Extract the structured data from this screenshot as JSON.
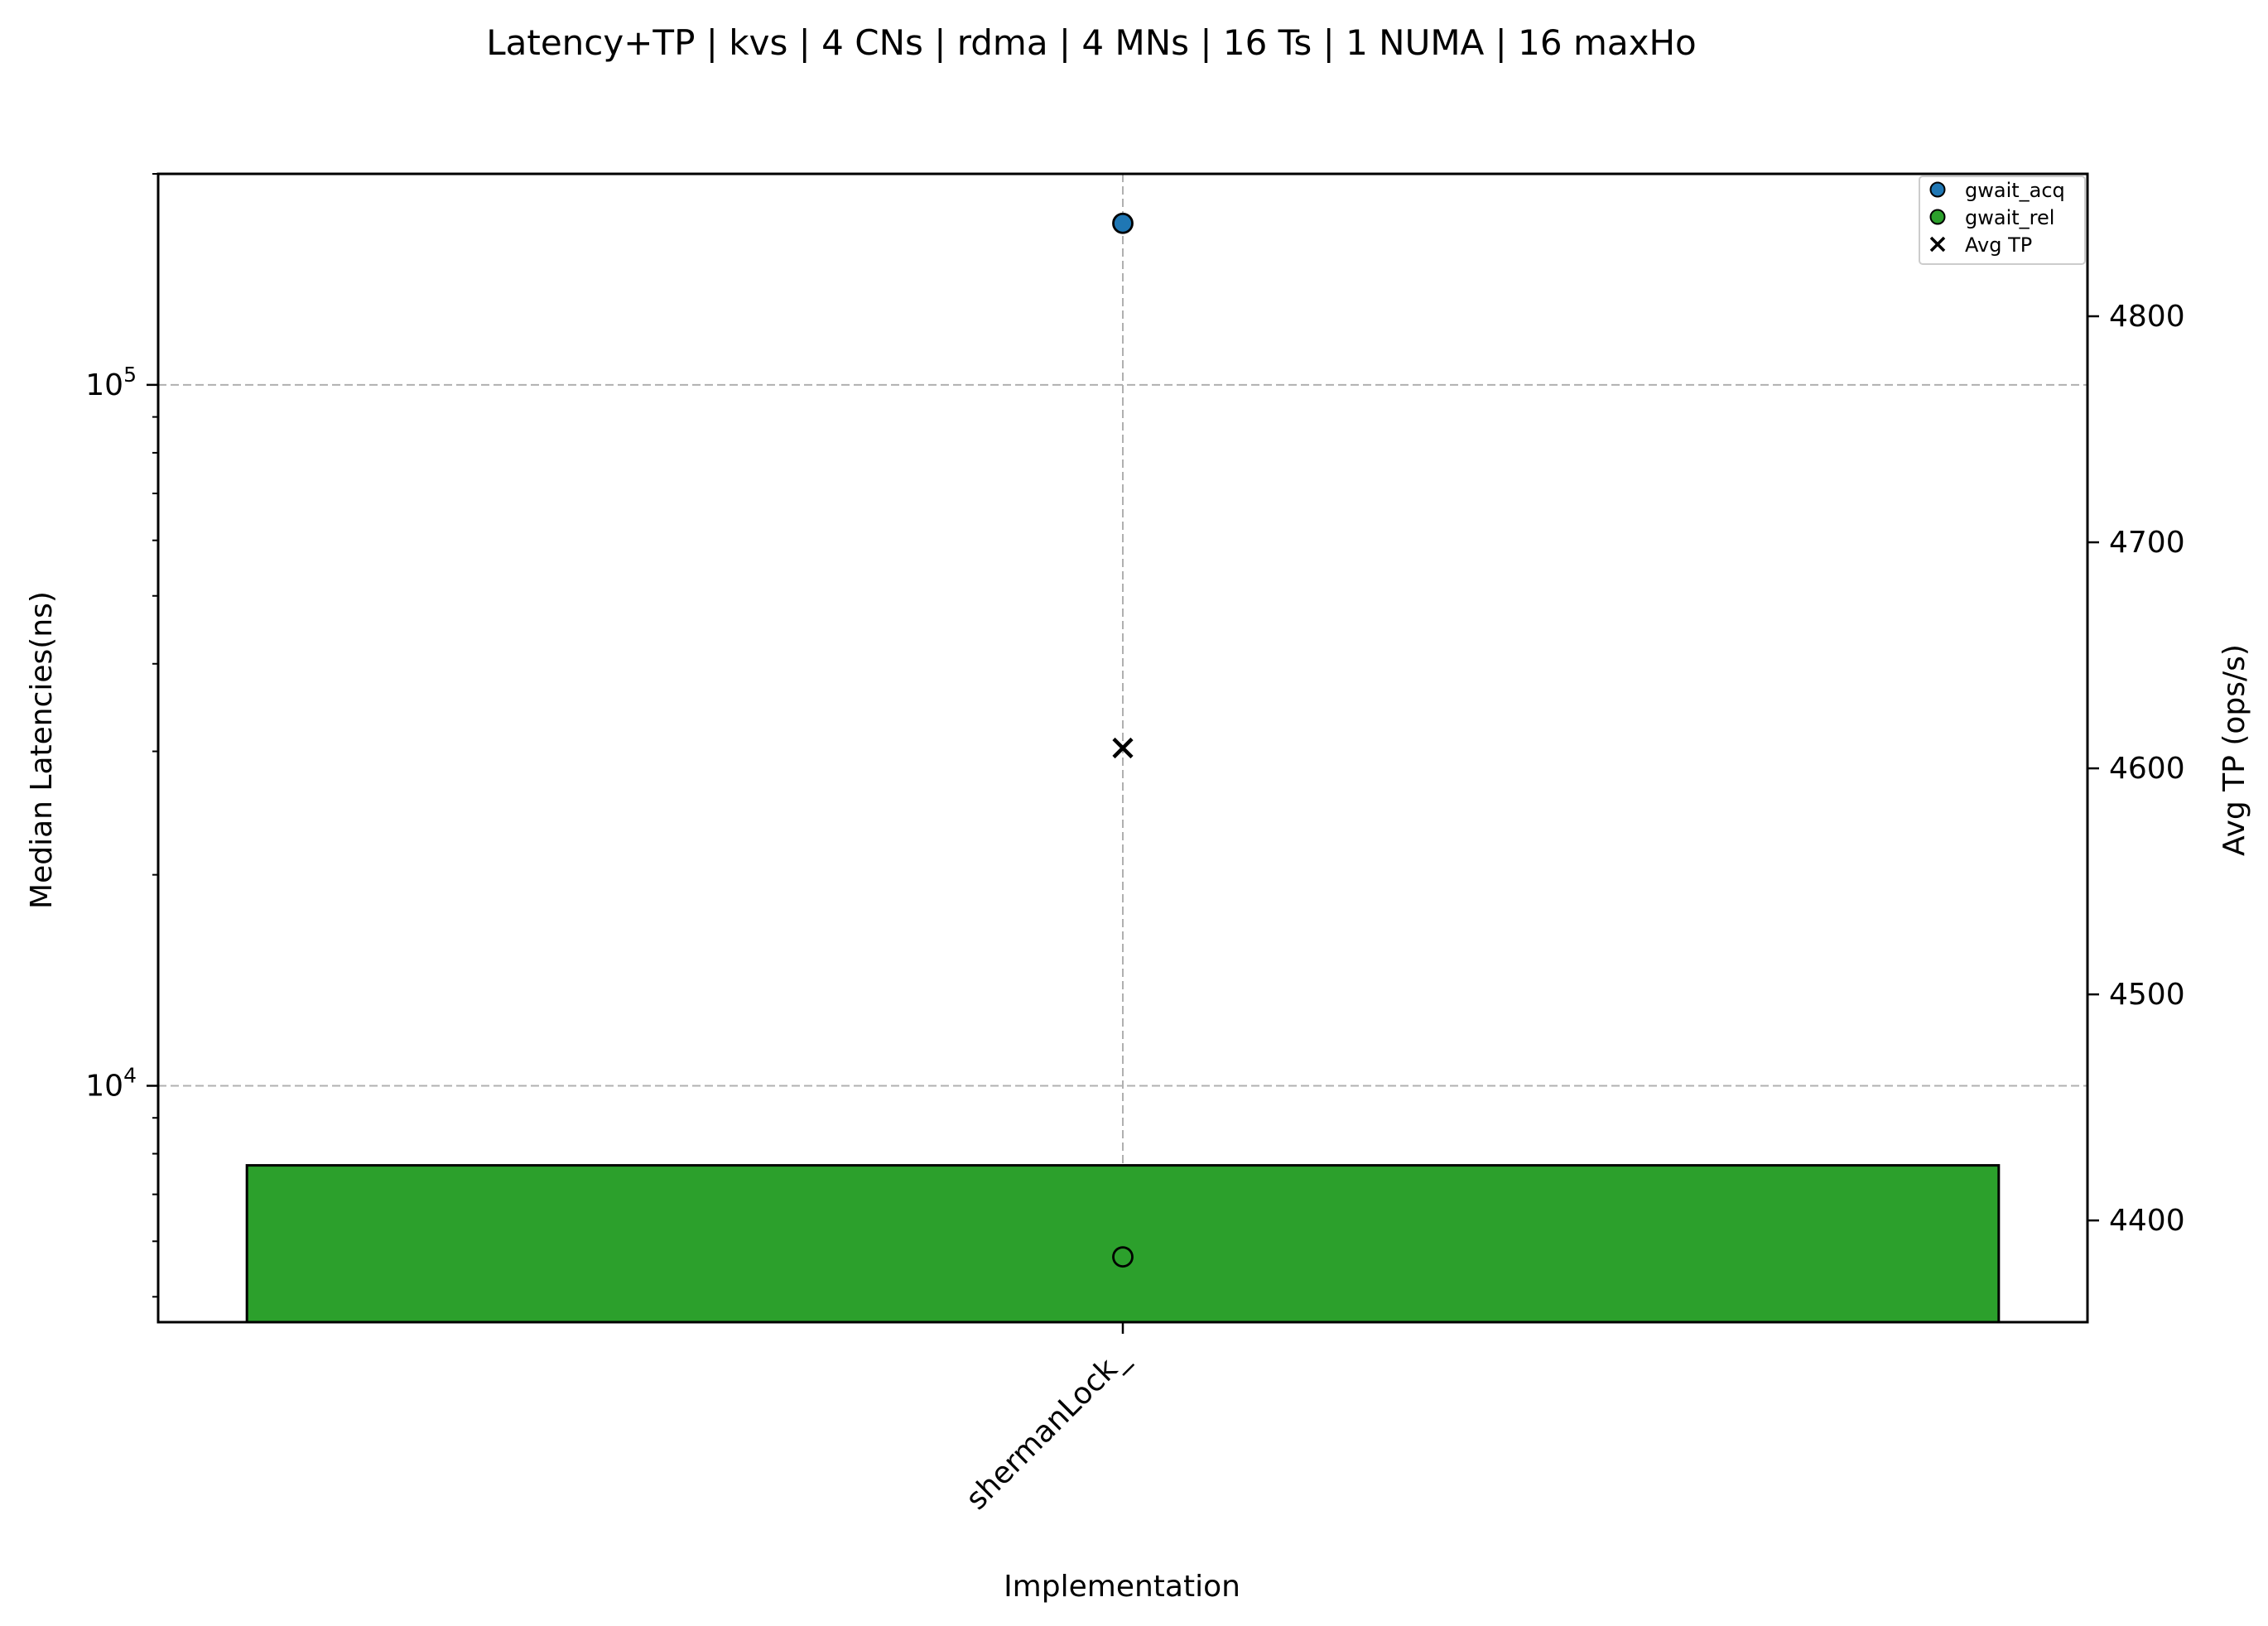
{
  "chart_data": {
    "type": "bar",
    "title": "Latency+TP | kvs | 4 CNs | rdma | 4 MNs | 16 Ts | 1 NUMA | 16 maxHo",
    "xlabel": "Implementation",
    "ylabel": "Median Latencies(ns)",
    "y2label": "Avg TP (ops/s)",
    "categories": [
      "shermanLock_"
    ],
    "y_scale": "log",
    "ylim": [
      4600,
      200000
    ],
    "y_ticks": [
      10000,
      100000
    ],
    "y_tick_labels": [
      {
        "base": "10",
        "exp": "4"
      },
      {
        "base": "10",
        "exp": "5"
      }
    ],
    "y2lim": [
      4355,
      4863
    ],
    "y2_ticks": [
      4400,
      4500,
      4600,
      4700,
      4800
    ],
    "y2_tick_labels": [
      "4400",
      "4500",
      "4600",
      "4700",
      "4800"
    ],
    "bars": [
      {
        "category": "shermanLock_",
        "value": 7700,
        "color": "#2ca02c"
      }
    ],
    "series": [
      {
        "name": "gwait_acq",
        "marker": "circle",
        "color": "#1f77b4",
        "values": [
          170000
        ],
        "axis": "left"
      },
      {
        "name": "gwait_rel",
        "marker": "circle",
        "color": "#2ca02c",
        "values": [
          5700
        ],
        "axis": "left"
      },
      {
        "name": "Avg TP",
        "marker": "x",
        "color": "#000000",
        "values": [
          4609
        ],
        "axis": "right"
      }
    ],
    "grid": true,
    "legend_position": "top-right"
  }
}
